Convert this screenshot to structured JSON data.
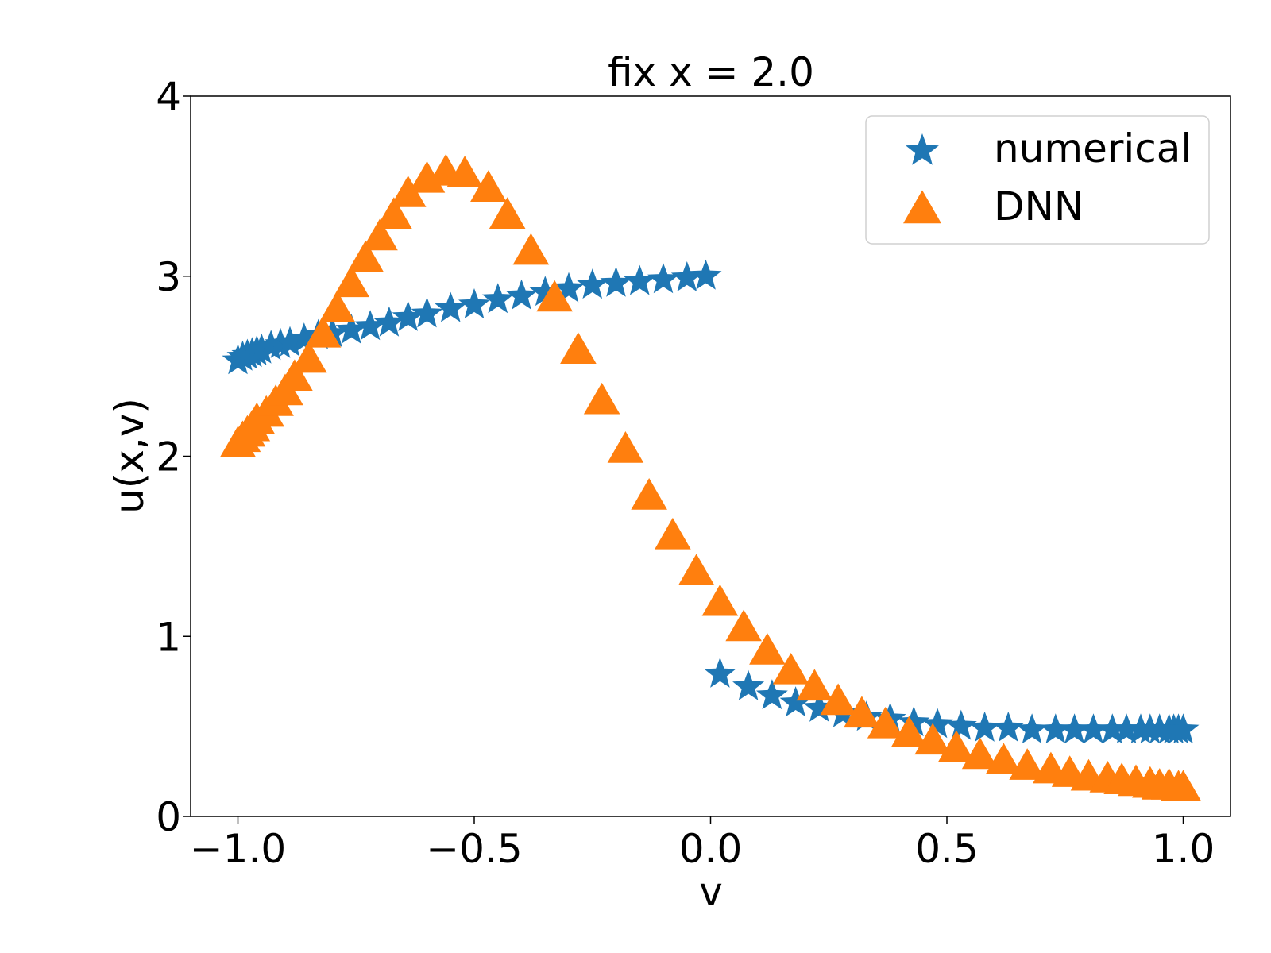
{
  "chart_data": {
    "type": "scatter",
    "title": "fix x = 2.0",
    "xlabel": "v",
    "ylabel": "u(x,v)",
    "xlim": [
      -1.1,
      1.1
    ],
    "ylim": [
      0,
      4
    ],
    "grid": false,
    "legend_position": "top-right",
    "x_ticks": [
      -1.0,
      -0.5,
      0.0,
      0.5,
      1.0
    ],
    "x_tick_labels": [
      "−1.0",
      "−0.5",
      "0.0",
      "0.5",
      "1.0"
    ],
    "y_ticks": [
      0,
      1,
      2,
      3,
      4
    ],
    "y_tick_labels": [
      "0",
      "1",
      "2",
      "3",
      "4"
    ],
    "series": [
      {
        "name": "numerical",
        "marker": "star",
        "color": "#1f77b4",
        "points": [
          [
            -1.0,
            2.53
          ],
          [
            -0.99,
            2.55
          ],
          [
            -0.98,
            2.56
          ],
          [
            -0.97,
            2.57
          ],
          [
            -0.96,
            2.58
          ],
          [
            -0.95,
            2.59
          ],
          [
            -0.93,
            2.61
          ],
          [
            -0.91,
            2.62
          ],
          [
            -0.89,
            2.63
          ],
          [
            -0.86,
            2.65
          ],
          [
            -0.83,
            2.67
          ],
          [
            -0.8,
            2.68
          ],
          [
            -0.76,
            2.7
          ],
          [
            -0.72,
            2.72
          ],
          [
            -0.68,
            2.74
          ],
          [
            -0.64,
            2.77
          ],
          [
            -0.6,
            2.79
          ],
          [
            -0.55,
            2.82
          ],
          [
            -0.5,
            2.84
          ],
          [
            -0.45,
            2.87
          ],
          [
            -0.4,
            2.89
          ],
          [
            -0.35,
            2.91
          ],
          [
            -0.3,
            2.93
          ],
          [
            -0.25,
            2.95
          ],
          [
            -0.2,
            2.96
          ],
          [
            -0.15,
            2.97
          ],
          [
            -0.1,
            2.98
          ],
          [
            -0.05,
            2.99
          ],
          [
            -0.01,
            3.0
          ],
          [
            0.02,
            0.79
          ],
          [
            0.08,
            0.72
          ],
          [
            0.13,
            0.67
          ],
          [
            0.18,
            0.63
          ],
          [
            0.23,
            0.6
          ],
          [
            0.28,
            0.57
          ],
          [
            0.33,
            0.55
          ],
          [
            0.38,
            0.54
          ],
          [
            0.43,
            0.52
          ],
          [
            0.48,
            0.51
          ],
          [
            0.53,
            0.5
          ],
          [
            0.58,
            0.49
          ],
          [
            0.63,
            0.49
          ],
          [
            0.68,
            0.48
          ],
          [
            0.73,
            0.48
          ],
          [
            0.77,
            0.48
          ],
          [
            0.81,
            0.48
          ],
          [
            0.85,
            0.48
          ],
          [
            0.88,
            0.48
          ],
          [
            0.91,
            0.48
          ],
          [
            0.93,
            0.48
          ],
          [
            0.95,
            0.48
          ],
          [
            0.97,
            0.48
          ],
          [
            0.98,
            0.48
          ],
          [
            0.99,
            0.48
          ],
          [
            1.0,
            0.48
          ]
        ]
      },
      {
        "name": "DNN",
        "marker": "triangle",
        "color": "#ff7f0e",
        "points": [
          [
            -1.0,
            2.07
          ],
          [
            -0.99,
            2.1
          ],
          [
            -0.98,
            2.13
          ],
          [
            -0.97,
            2.16
          ],
          [
            -0.96,
            2.2
          ],
          [
            -0.94,
            2.24
          ],
          [
            -0.92,
            2.3
          ],
          [
            -0.9,
            2.36
          ],
          [
            -0.88,
            2.44
          ],
          [
            -0.85,
            2.54
          ],
          [
            -0.82,
            2.68
          ],
          [
            -0.79,
            2.82
          ],
          [
            -0.76,
            2.96
          ],
          [
            -0.73,
            3.1
          ],
          [
            -0.7,
            3.22
          ],
          [
            -0.67,
            3.34
          ],
          [
            -0.64,
            3.46
          ],
          [
            -0.6,
            3.54
          ],
          [
            -0.56,
            3.58
          ],
          [
            -0.52,
            3.57
          ],
          [
            -0.47,
            3.49
          ],
          [
            -0.43,
            3.34
          ],
          [
            -0.38,
            3.14
          ],
          [
            -0.33,
            2.88
          ],
          [
            -0.28,
            2.59
          ],
          [
            -0.23,
            2.31
          ],
          [
            -0.18,
            2.04
          ],
          [
            -0.13,
            1.78
          ],
          [
            -0.08,
            1.56
          ],
          [
            -0.03,
            1.36
          ],
          [
            0.02,
            1.19
          ],
          [
            0.07,
            1.05
          ],
          [
            0.12,
            0.92
          ],
          [
            0.17,
            0.81
          ],
          [
            0.22,
            0.72
          ],
          [
            0.27,
            0.64
          ],
          [
            0.32,
            0.57
          ],
          [
            0.37,
            0.51
          ],
          [
            0.42,
            0.46
          ],
          [
            0.47,
            0.42
          ],
          [
            0.52,
            0.38
          ],
          [
            0.57,
            0.34
          ],
          [
            0.62,
            0.31
          ],
          [
            0.67,
            0.28
          ],
          [
            0.72,
            0.26
          ],
          [
            0.76,
            0.24
          ],
          [
            0.8,
            0.22
          ],
          [
            0.84,
            0.21
          ],
          [
            0.87,
            0.2
          ],
          [
            0.9,
            0.19
          ],
          [
            0.93,
            0.18
          ],
          [
            0.95,
            0.17
          ],
          [
            0.97,
            0.17
          ],
          [
            0.99,
            0.16
          ],
          [
            1.0,
            0.16
          ]
        ]
      }
    ]
  }
}
